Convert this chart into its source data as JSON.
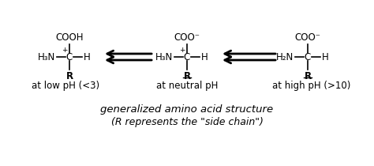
{
  "bg_color": "#ffffff",
  "title_line1": "generalized amino acid structure",
  "title_line2": "(R represents the \"side chain\")",
  "label1": "at low pH (<3)",
  "label2": "at neutral pH",
  "label3": "at high pH (>10)",
  "struct1": {
    "top": "COOH",
    "left_main": "H",
    "left_sub": "3",
    "left_ion": "N",
    "left_charge": "+",
    "right": "H",
    "bottom": "R",
    "bottom_underline": false
  },
  "struct2": {
    "top": "COO⁻",
    "left_main": "H",
    "left_sub": "3",
    "left_ion": "N",
    "left_charge": "+",
    "right": "H",
    "bottom": "R",
    "bottom_underline": true
  },
  "struct3": {
    "top": "COO⁻",
    "left_main": "H",
    "left_sub": "2",
    "left_ion": "N",
    "left_charge": "",
    "right": "H",
    "bottom": "R",
    "bottom_underline": true
  },
  "font_size_struct": 8.5,
  "font_size_label": 8.5,
  "font_size_title": 9.5
}
